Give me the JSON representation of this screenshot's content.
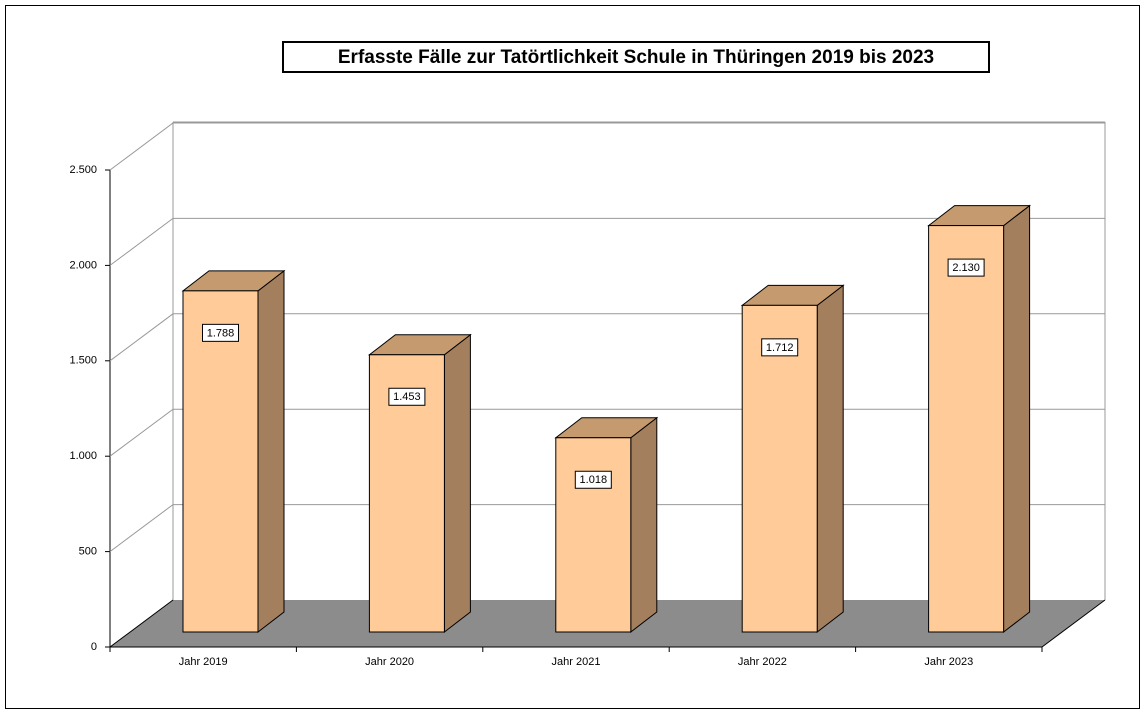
{
  "chart_data": {
    "type": "bar3d",
    "title": "Erfasste Fälle zur Tatörtlichkeit Schule in Thüringen 2019 bis 2023",
    "categories": [
      "Jahr 2019",
      "Jahr 2020",
      "Jahr 2021",
      "Jahr 2022",
      "Jahr 2023"
    ],
    "values": [
      1788,
      1453,
      1018,
      1712,
      2130
    ],
    "value_labels": [
      "1.788",
      "1.453",
      "1.018",
      "1.712",
      "2.130"
    ],
    "color": "#ffcc99",
    "ylim": [
      0,
      2500
    ],
    "yticks": [
      0,
      500,
      {
        "value": 1000,
        "label": "1.000"
      },
      {
        "value": 1500,
        "label": "1.500"
      },
      {
        "value": 2000,
        "label": "2.000"
      },
      {
        "value": 2500,
        "label": "2.500"
      }
    ],
    "grid": true
  }
}
